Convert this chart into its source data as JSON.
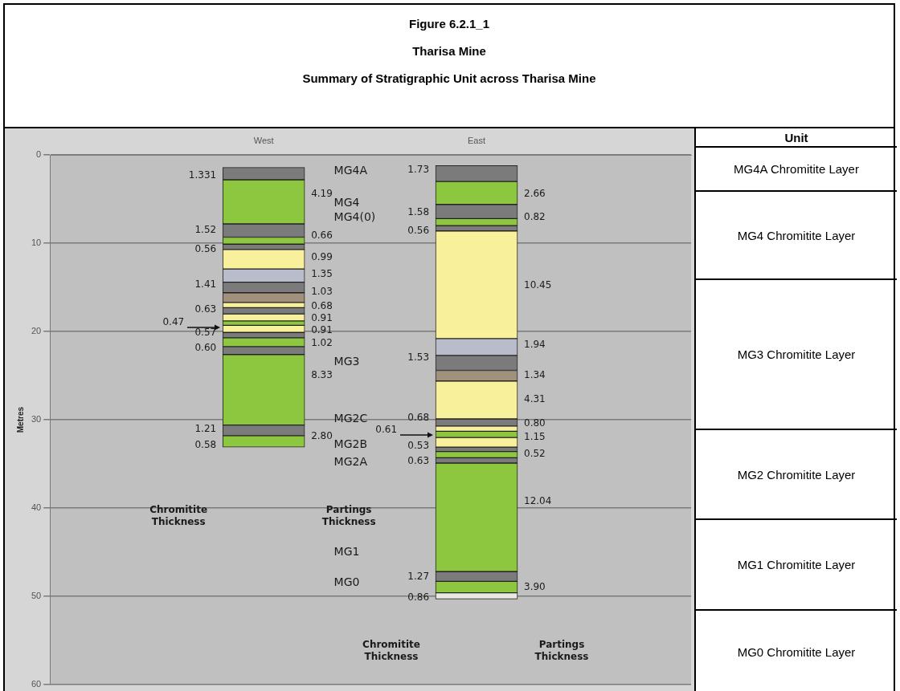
{
  "chart_data": {
    "type": "bar",
    "title": "Figure 6.2.1_1\nTharisa Mine",
    "subtitle": "Summary of Stratigraphic Unit across Tharisa Mine",
    "ylabel": "Metres",
    "categories": [
      "West",
      "East"
    ],
    "ylim": [
      60,
      0
    ],
    "yticks": [
      0,
      10,
      20,
      30,
      40,
      50,
      60
    ],
    "grid": "y",
    "series": [
      {
        "colors": [
          "#7b7b7b",
          "#7b7b7b"
        ],
        "base": [
          1.4,
          1.2
        ],
        "values": [
          1.4,
          1.8
        ]
      },
      {
        "colors": [
          "#8dc63f",
          "#8dc63f"
        ],
        "base": [
          2.8,
          3.0
        ],
        "values": [
          5.0,
          2.6
        ]
      },
      {
        "colors": [
          "#7b7b7b",
          "#7b7b7b"
        ],
        "base": [
          7.8,
          5.6
        ],
        "values": [
          1.5,
          1.6
        ]
      },
      {
        "colors": [
          "#8dc63f",
          "#8dc63f"
        ],
        "base": [
          9.3,
          7.2
        ],
        "values": [
          0.8,
          0.8
        ]
      },
      {
        "colors": [
          "#7b7b7b",
          "#7b7b7b"
        ],
        "base": [
          10.1,
          8.0
        ],
        "values": [
          0.6,
          0.6
        ]
      },
      {
        "colors": [
          "#f8f09a",
          "#f8f09a"
        ],
        "base": [
          10.7,
          8.6
        ],
        "values": [
          2.2,
          12.2
        ]
      },
      {
        "colors": [
          "#b9bccb",
          "#b9bccb"
        ],
        "base": [
          12.9,
          20.8
        ],
        "values": [
          1.5,
          1.9
        ]
      },
      {
        "colors": [
          "#7b7b7b",
          "#7b7b7b"
        ],
        "base": [
          14.4,
          22.7
        ],
        "values": [
          1.2,
          1.7
        ]
      },
      {
        "colors": [
          "#a0907c",
          "#a0907c"
        ],
        "base": [
          15.6,
          24.4
        ],
        "values": [
          1.1,
          1.2
        ]
      },
      {
        "colors": [
          "#f8f09a",
          "#f8f09a"
        ],
        "base": [
          16.7,
          25.6
        ],
        "values": [
          0.6,
          4.3
        ]
      },
      {
        "colors": [
          "#7b7b7b",
          "#7b7b7b"
        ],
        "base": [
          17.3,
          29.9
        ],
        "values": [
          0.7,
          0.8
        ]
      },
      {
        "colors": [
          "#f8f09a",
          "#f8f09a"
        ],
        "base": [
          18.0,
          30.7
        ],
        "values": [
          0.8,
          0.6
        ]
      },
      {
        "colors": [
          "#8dc63f",
          "#8dc63f"
        ],
        "base": [
          18.8,
          31.3
        ],
        "values": [
          0.5,
          0.7
        ]
      },
      {
        "colors": [
          "#f8f09a",
          "#f8f09a"
        ],
        "base": [
          19.3,
          32.0
        ],
        "values": [
          0.8,
          1.1
        ]
      },
      {
        "colors": [
          "#7b7b7b",
          "#7b7b7b"
        ],
        "base": [
          20.1,
          33.1
        ],
        "values": [
          0.6,
          0.5
        ]
      },
      {
        "colors": [
          "#8dc63f",
          "#8dc63f"
        ],
        "base": [
          20.7,
          33.6
        ],
        "values": [
          1.0,
          0.7
        ]
      },
      {
        "colors": [
          "#7b7b7b",
          "#7b7b7b"
        ],
        "base": [
          21.7,
          34.3
        ],
        "values": [
          0.9,
          0.6
        ]
      },
      {
        "colors": [
          "#8dc63f",
          "#8dc63f"
        ],
        "base": [
          22.6,
          34.9
        ],
        "values": [
          8.0,
          12.3
        ]
      },
      {
        "colors": [
          "#7b7b7b",
          "#7b7b7b"
        ],
        "base": [
          30.6,
          47.2
        ],
        "values": [
          1.2,
          1.1
        ]
      },
      {
        "colors": [
          "#8dc63f",
          "#8dc63f"
        ],
        "base": [
          31.8,
          48.3
        ],
        "values": [
          1.3,
          1.3
        ]
      },
      {
        "colors": [
          null,
          "#e9e9e2"
        ],
        "base": [
          null,
          49.6
        ],
        "values": [
          null,
          0.7
        ]
      }
    ],
    "annotations": [
      "1.331",
      "1.52",
      "0.56",
      "1.41",
      "0.63",
      "0.47",
      "0.57",
      "0.60",
      "1.21",
      "0.58",
      "4.19",
      "0.66",
      "0.99",
      "1.35",
      "1.03",
      "0.68",
      "0.91",
      "0.91",
      "1.02",
      "8.33",
      "2.80",
      "1.73",
      "1.58",
      "0.56",
      "1.53",
      "0.68",
      "0.61",
      "0.53",
      "0.63",
      "1.27",
      "0.86",
      "2.66",
      "0.82",
      "10.45",
      "1.94",
      "1.34",
      "4.31",
      "0.80",
      "1.15",
      "0.52",
      "12.04",
      "3.90",
      "MG4A",
      "MG4",
      "MG4(0)",
      "MG3",
      "MG2C",
      "MG2B",
      "MG2A",
      "MG1",
      "MG0",
      "Chromitite Thickness",
      "Partings Thickness",
      "Chromitite Thickness",
      "Partings Thickness",
      "Unit",
      "MG4A Chromitite Layer",
      "MG4 Chromitite Layer",
      "MG3 Chromitite Layer",
      "MG2 Chromitite Layer",
      "MG1 Chromitite Layer",
      "MG0 Chromitite Layer"
    ]
  }
}
